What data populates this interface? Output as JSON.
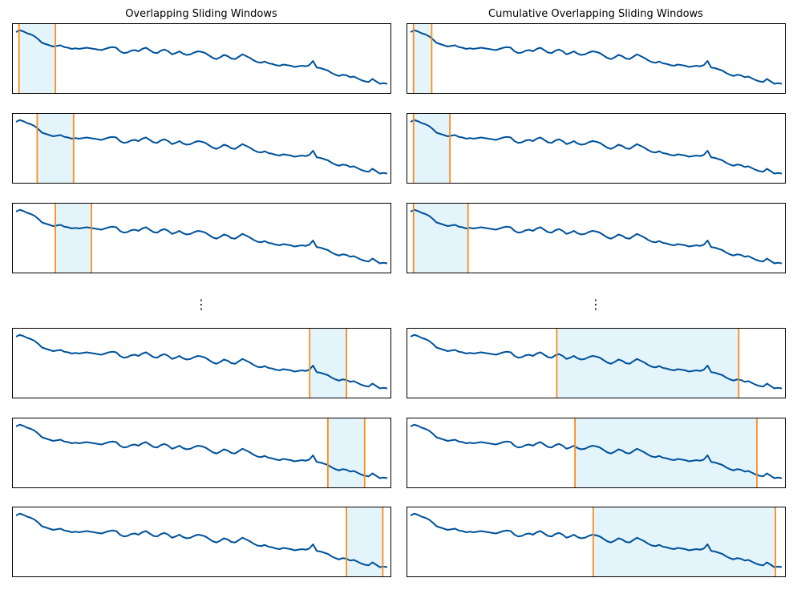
{
  "titles": {
    "left": "Overlapping Sliding Windows",
    "right": "Cumulative Overlapping Sliding Windows"
  },
  "ellipsis": "⋮",
  "colors": {
    "line": "#00529b",
    "window_edge": "#ff8c1a",
    "window_fill": "#e3f4fb",
    "frame": "#000000"
  },
  "chart_data": [
    {
      "type": "line",
      "title": "Overlapping Sliding Windows",
      "xlabel": "",
      "ylabel": "",
      "grid": false,
      "xlim": [
        0,
        100
      ],
      "ylim": [
        0,
        1
      ],
      "series_ref": "shared_series",
      "windows": [
        {
          "start": 0.8,
          "end": 10.6
        },
        {
          "start": 5.7,
          "end": 15.5
        },
        {
          "start": 10.6,
          "end": 20.3
        },
        {
          "start": 79.1,
          "end": 89.0
        },
        {
          "start": 84.0,
          "end": 93.9
        },
        {
          "start": 89.0,
          "end": 98.8
        }
      ]
    },
    {
      "type": "line",
      "title": "Cumulative Overlapping Sliding Windows",
      "xlabel": "",
      "ylabel": "",
      "grid": false,
      "xlim": [
        0,
        100
      ],
      "ylim": [
        0,
        1
      ],
      "series_ref": "shared_series",
      "windows": [
        {
          "start": 0.8,
          "end": 5.7
        },
        {
          "start": 0.8,
          "end": 10.6
        },
        {
          "start": 0.8,
          "end": 15.5
        },
        {
          "start": 39.4,
          "end": 88.4
        },
        {
          "start": 44.3,
          "end": 93.3
        },
        {
          "start": 49.2,
          "end": 98.3
        }
      ]
    }
  ],
  "shared_series": {
    "x": [
      0,
      1,
      2,
      3,
      4,
      5,
      6,
      7,
      8,
      9,
      10,
      11,
      12,
      13,
      14,
      15,
      16,
      17,
      18,
      19,
      20,
      21,
      22,
      23,
      24,
      25,
      26,
      27,
      28,
      29,
      30,
      31,
      32,
      33,
      34,
      35,
      36,
      37,
      38,
      39,
      40,
      41,
      42,
      43,
      44,
      45,
      46,
      47,
      48,
      49,
      50,
      51,
      52,
      53,
      54,
      55,
      56,
      57,
      58,
      59,
      60,
      61,
      62,
      63,
      64,
      65,
      66,
      67,
      68,
      69,
      70,
      71,
      72,
      73,
      74,
      75,
      76,
      77,
      78,
      79,
      80,
      81,
      82,
      83,
      84,
      85,
      86,
      87,
      88,
      89,
      90,
      91,
      92,
      93,
      94,
      95,
      96,
      97,
      98,
      99,
      100
    ],
    "y": [
      0.92,
      0.95,
      0.93,
      0.9,
      0.88,
      0.85,
      0.8,
      0.74,
      0.72,
      0.7,
      0.68,
      0.69,
      0.7,
      0.67,
      0.66,
      0.64,
      0.65,
      0.64,
      0.65,
      0.66,
      0.65,
      0.64,
      0.63,
      0.62,
      0.64,
      0.66,
      0.67,
      0.66,
      0.6,
      0.57,
      0.58,
      0.61,
      0.62,
      0.6,
      0.64,
      0.66,
      0.62,
      0.58,
      0.57,
      0.61,
      0.63,
      0.6,
      0.55,
      0.57,
      0.6,
      0.56,
      0.54,
      0.55,
      0.58,
      0.6,
      0.59,
      0.57,
      0.53,
      0.49,
      0.47,
      0.5,
      0.54,
      0.52,
      0.48,
      0.47,
      0.51,
      0.55,
      0.52,
      0.49,
      0.45,
      0.42,
      0.41,
      0.43,
      0.4,
      0.39,
      0.37,
      0.36,
      0.38,
      0.37,
      0.36,
      0.34,
      0.35,
      0.36,
      0.35,
      0.37,
      0.44,
      0.33,
      0.32,
      0.3,
      0.28,
      0.24,
      0.21,
      0.19,
      0.21,
      0.2,
      0.17,
      0.18,
      0.15,
      0.12,
      0.1,
      0.09,
      0.14,
      0.1,
      0.06,
      0.07,
      0.06
    ]
  }
}
